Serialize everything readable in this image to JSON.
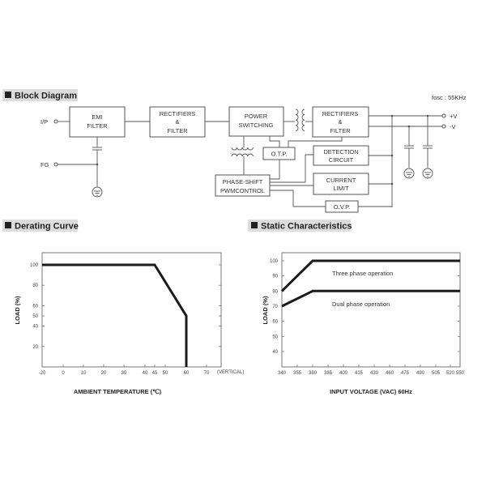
{
  "block_diagram": {
    "title": "Block Diagram",
    "fosc": "fosc : 55KHz",
    "inputs": {
      "ip": "I/P",
      "fg": "FG"
    },
    "outputs": {
      "plus": "+V",
      "minus": "-V"
    },
    "blocks": {
      "emi": [
        "EMI",
        "FILTER"
      ],
      "rect1": [
        "RECTIFIERS",
        "&",
        "FILTER"
      ],
      "power": [
        "POWER",
        "SWITCHING"
      ],
      "rect2": [
        "RECTIFIERS",
        "&",
        "FILTER"
      ],
      "otp": [
        "O.T.P."
      ],
      "detection": [
        "DETECTION",
        "CIRCUIT"
      ],
      "current": [
        "CURRENT",
        "LIMIT"
      ],
      "ovp": [
        "O.V.P."
      ],
      "pwm": [
        "PHASE-SHIFT",
        "PWMCONTROL"
      ]
    }
  },
  "chart_data": [
    {
      "type": "line",
      "title": "Derating Curve",
      "xlabel": "AMBIENT TEMPERATURE (℃)",
      "ylabel": "LOAD (%)",
      "x_ticks": [
        "-20",
        "0",
        "10",
        "20",
        "30",
        "40",
        "45",
        "50",
        "60",
        "70"
      ],
      "x_tick_suffix": "(VERTICAL)",
      "y_ticks": [
        "100",
        "80",
        "60",
        "50",
        "40",
        "20"
      ],
      "ylim": [
        0,
        112
      ],
      "grid": false,
      "series": [
        {
          "x": [
            -20,
            45,
            60,
            60
          ],
          "y": [
            100,
            100,
            50,
            0
          ]
        }
      ]
    },
    {
      "type": "line",
      "title": "Static Characteristics",
      "xlabel": "INPUT VOLTAGE (VAC) 60Hz",
      "ylabel": "LOAD (%)",
      "x_ticks": [
        "340",
        "355",
        "380",
        "385",
        "400",
        "415",
        "430",
        "460",
        "475",
        "490",
        "505",
        "520",
        "550"
      ],
      "y_ticks": [
        "100",
        "90",
        "80",
        "70",
        "60",
        "50",
        "40"
      ],
      "ylim": [
        32,
        105
      ],
      "grid": false,
      "annotations": [
        "Three phase operation",
        "Dual phase operation"
      ],
      "series": [
        {
          "x": [
            340,
            380,
            550
          ],
          "y": [
            80,
            100,
            100
          ]
        },
        {
          "x": [
            340,
            380,
            550
          ],
          "y": [
            70,
            80,
            80
          ]
        }
      ]
    }
  ]
}
